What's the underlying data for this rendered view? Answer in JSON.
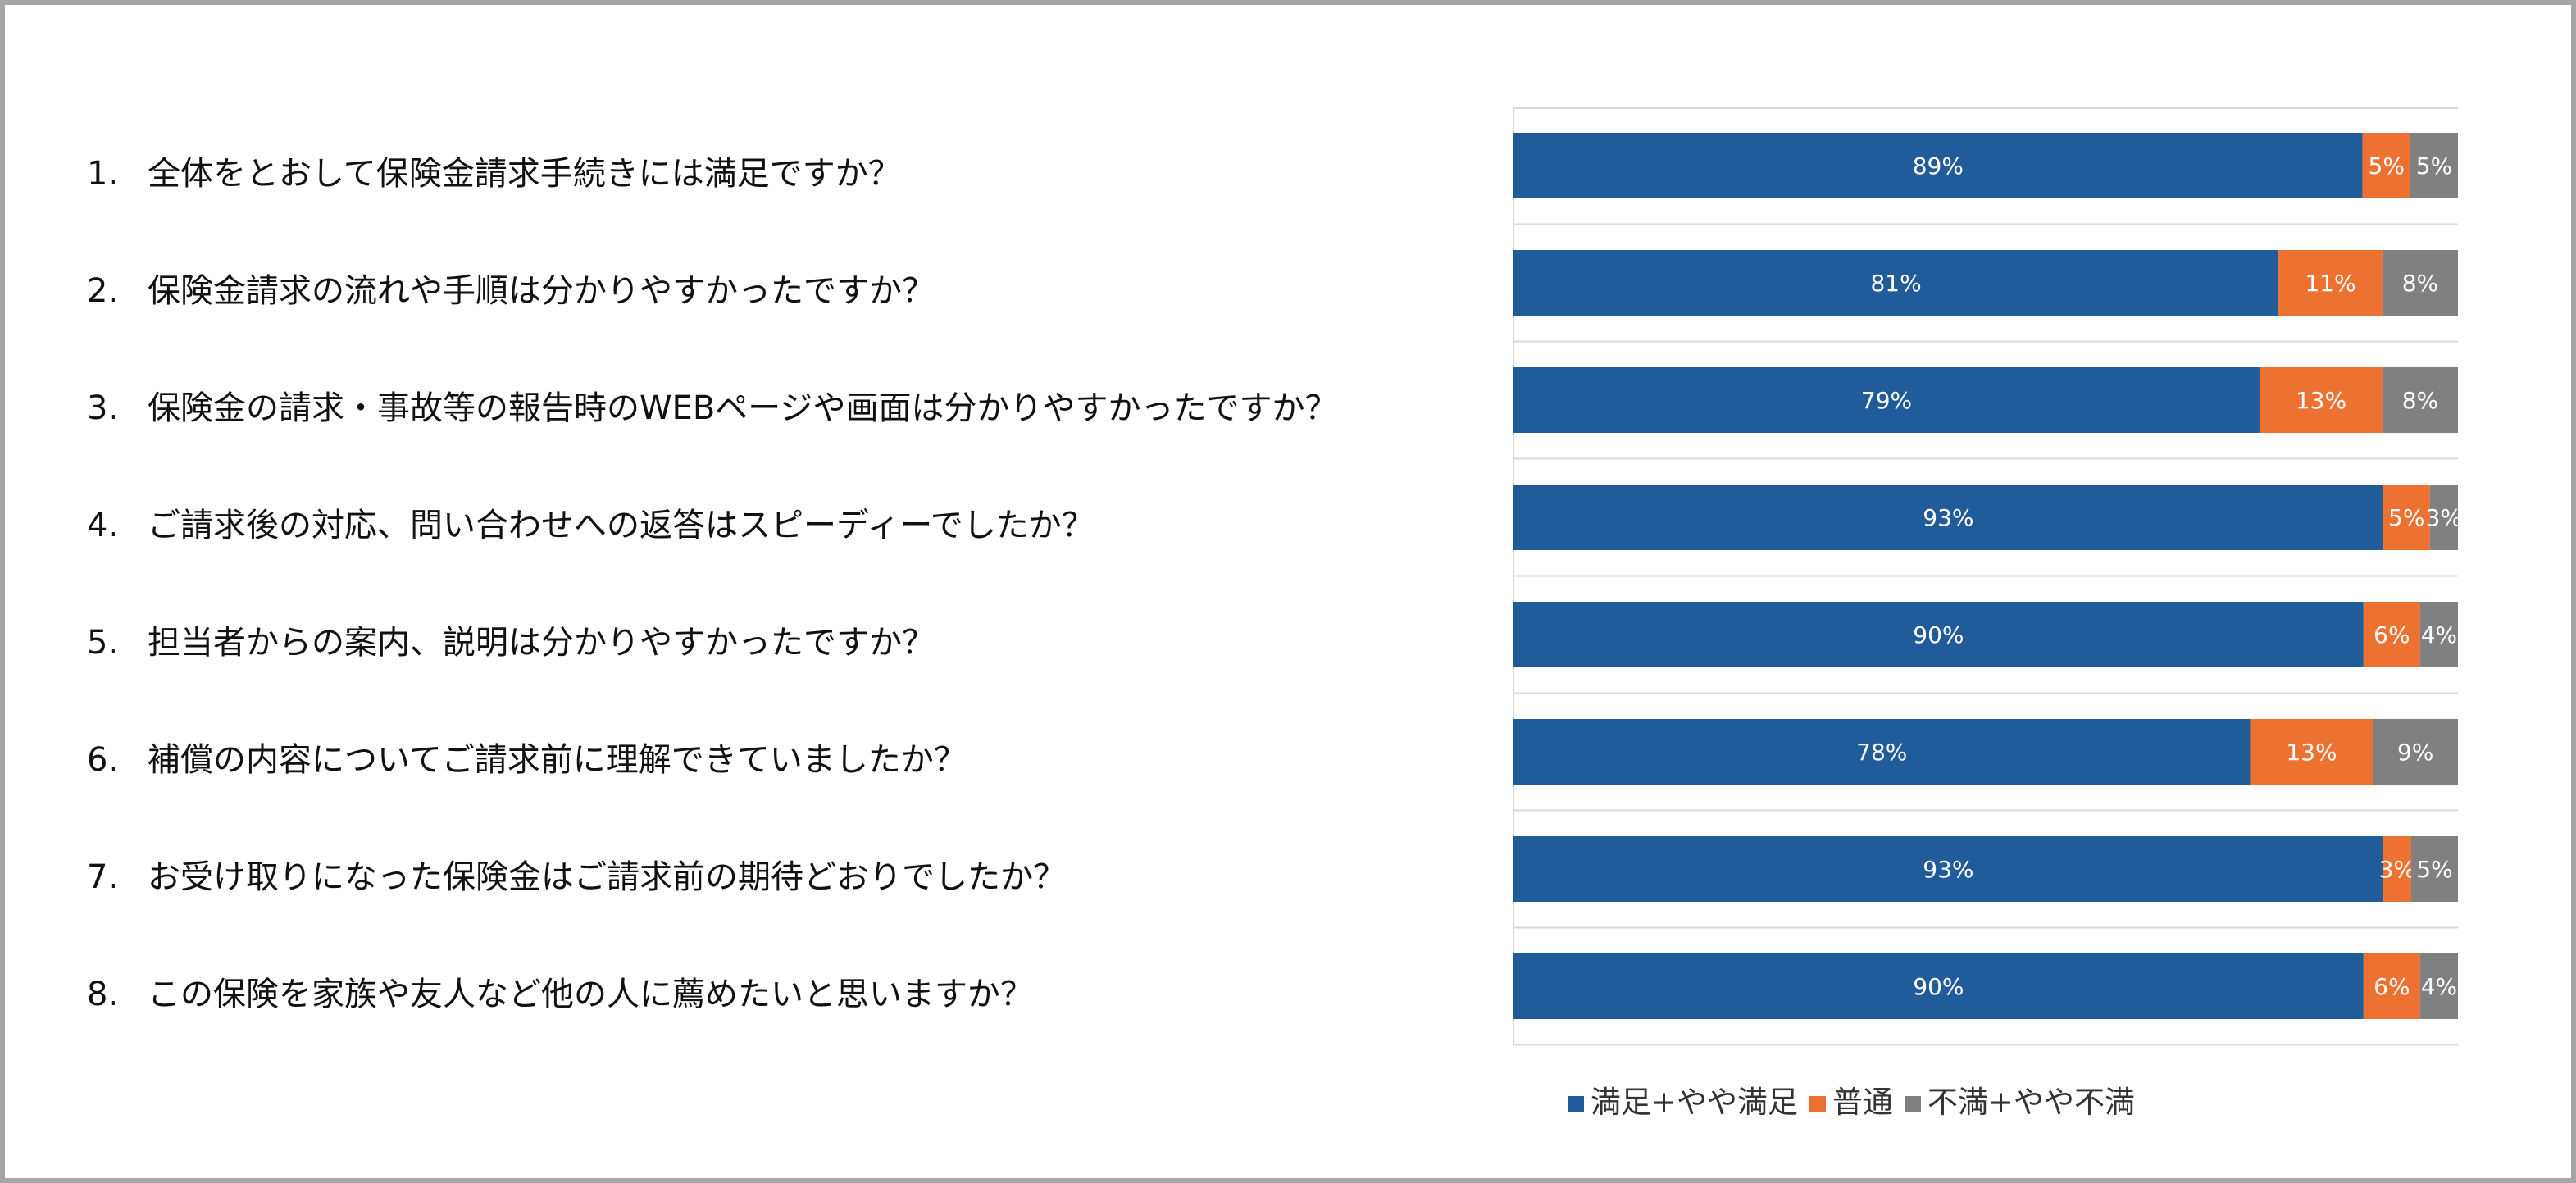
{
  "questions": [
    {
      "num": "1.",
      "text": "全体をとおして保険金請求手続きには満足ですか？"
    },
    {
      "num": "2.",
      "text": "保険金請求の流れや手順は分かりやすかったですか？"
    },
    {
      "num": "3.",
      "text": "保険金の請求・事故等の報告時のWEBページや画面は分かりやすかったですか？"
    },
    {
      "num": "4.",
      "text": "ご請求後の対応、問い合わせへの返答はスピーディーでしたか？"
    },
    {
      "num": "5.",
      "text": "担当者からの案内、説明は分かりやすかったですか？"
    },
    {
      "num": "6.",
      "text": "補償の内容についてご請求前に理解できていましたか？"
    },
    {
      "num": "7.",
      "text": "お受け取りになった保険金はご請求前の期待どおりでしたか？"
    },
    {
      "num": "8.",
      "text": "この保険を家族や友人など他の人に薦めたいと思いますか？"
    }
  ],
  "chart_data": {
    "type": "bar",
    "orientation": "horizontal",
    "stacked": true,
    "percent_stacked": true,
    "categories": [
      "1.",
      "2.",
      "3.",
      "4.",
      "5.",
      "6.",
      "7.",
      "8."
    ],
    "series": [
      {
        "name": "満足+やや満足",
        "color": "#1f5c99",
        "values": [
          89,
          81,
          79,
          93,
          90,
          78,
          93,
          90
        ],
        "labels": [
          "89%",
          "81%",
          "79%",
          "93%",
          "90%",
          "78%",
          "93%",
          "90%"
        ]
      },
      {
        "name": "普通",
        "color": "#ed7131",
        "values": [
          5,
          11,
          13,
          5,
          6,
          13,
          3,
          6
        ],
        "labels": [
          "5%",
          "11%",
          "13%",
          "5%",
          "6%",
          "13%",
          "3%",
          "6%"
        ]
      },
      {
        "name": "不満+やや不満",
        "color": "#808080",
        "values": [
          5,
          8,
          8,
          3,
          4,
          9,
          5,
          4
        ],
        "labels": [
          "5%",
          "8%",
          "8%",
          "3%",
          "4%",
          "9%",
          "5%",
          "4%"
        ]
      }
    ],
    "legend_position": "bottom",
    "grid": true
  }
}
